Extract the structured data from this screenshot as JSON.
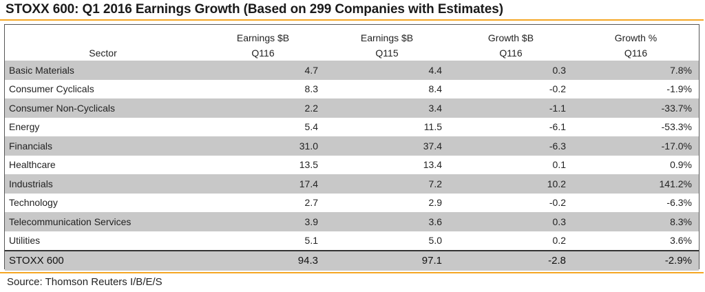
{
  "title": "STOXX 600: Q1 2016 Earnings Growth (Based on 299 Companies with Estimates)",
  "source": "Source: Thomson Reuters I/B/E/S",
  "colors": {
    "accent_rule": "#f5a623",
    "row_shade": "#c8c8c8"
  },
  "chart_data": {
    "type": "table",
    "title": "STOXX 600: Q1 2016 Earnings Growth (Based on 299 Companies with Estimates)",
    "columns": [
      {
        "line1": "",
        "line2": "Sector"
      },
      {
        "line1": "Earnings $B",
        "line2": "Q116"
      },
      {
        "line1": "Earnings $B",
        "line2": "Q115"
      },
      {
        "line1": "Growth $B",
        "line2": "Q116"
      },
      {
        "line1": "Growth %",
        "line2": "Q116"
      }
    ],
    "rows": [
      {
        "sector": "Basic Materials",
        "earnings_q116": "4.7",
        "earnings_q115": "4.4",
        "growth_b": "0.3",
        "growth_pct": "7.8%"
      },
      {
        "sector": "Consumer Cyclicals",
        "earnings_q116": "8.3",
        "earnings_q115": "8.4",
        "growth_b": "-0.2",
        "growth_pct": "-1.9%"
      },
      {
        "sector": "Consumer Non-Cyclicals",
        "earnings_q116": "2.2",
        "earnings_q115": "3.4",
        "growth_b": "-1.1",
        "growth_pct": "-33.7%"
      },
      {
        "sector": "Energy",
        "earnings_q116": "5.4",
        "earnings_q115": "11.5",
        "growth_b": "-6.1",
        "growth_pct": "-53.3%"
      },
      {
        "sector": "Financials",
        "earnings_q116": "31.0",
        "earnings_q115": "37.4",
        "growth_b": "-6.3",
        "growth_pct": "-17.0%"
      },
      {
        "sector": "Healthcare",
        "earnings_q116": "13.5",
        "earnings_q115": "13.4",
        "growth_b": "0.1",
        "growth_pct": "0.9%"
      },
      {
        "sector": "Industrials",
        "earnings_q116": "17.4",
        "earnings_q115": "7.2",
        "growth_b": "10.2",
        "growth_pct": "141.2%"
      },
      {
        "sector": "Technology",
        "earnings_q116": "2.7",
        "earnings_q115": "2.9",
        "growth_b": "-0.2",
        "growth_pct": "-6.3%"
      },
      {
        "sector": "Telecommunication Services",
        "earnings_q116": "3.9",
        "earnings_q115": "3.6",
        "growth_b": "0.3",
        "growth_pct": "8.3%"
      },
      {
        "sector": "Utilities",
        "earnings_q116": "5.1",
        "earnings_q115": "5.0",
        "growth_b": "0.2",
        "growth_pct": "3.6%"
      }
    ],
    "total": {
      "sector": "STOXX 600",
      "earnings_q116": "94.3",
      "earnings_q115": "97.1",
      "growth_b": "-2.8",
      "growth_pct": "-2.9%"
    }
  }
}
